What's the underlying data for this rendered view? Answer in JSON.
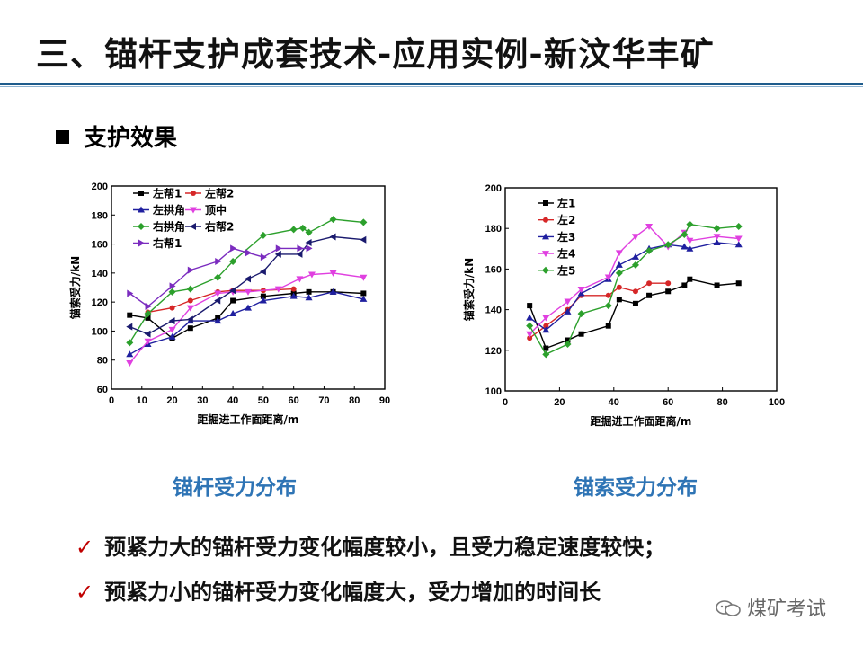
{
  "page": {
    "title": "三、锚杆支护成套技术-应用实例-新汶华丰矿",
    "section": "支护效果",
    "bullets": [
      "预紧力大的锚杆受力变化幅度较小，且受力稳定速度较快；",
      "预紧力小的锚杆受力变化幅度大，受力增加的时间长"
    ],
    "check_symbol": "✓",
    "watermark": "煤矿考试",
    "colors": {
      "title_rule": "#1f5c8c",
      "caption": "#2e74b5",
      "check": "#c00000"
    }
  },
  "chart_data": [
    {
      "type": "line",
      "caption": "锚杆受力分布",
      "xlabel": "距掘进工作面距离/m",
      "ylabel": "锚索受力/kN",
      "xlim": [
        0,
        90
      ],
      "ylim": [
        60,
        200
      ],
      "xticks": [
        0,
        10,
        20,
        30,
        40,
        50,
        60,
        70,
        80,
        90
      ],
      "yticks": [
        60,
        80,
        100,
        120,
        140,
        160,
        180,
        200
      ],
      "legend_columns": 2,
      "series": [
        {
          "name": "左帮1",
          "color": "#000000",
          "marker": "square",
          "x": [
            6,
            12,
            20,
            26,
            35,
            40,
            50,
            60,
            65,
            73,
            83
          ],
          "y": [
            111,
            109,
            95,
            102,
            109,
            121,
            124,
            126,
            127,
            127,
            126
          ]
        },
        {
          "name": "左帮2",
          "color": "#d62728",
          "marker": "circle",
          "x": [
            12,
            20,
            26,
            35,
            40,
            50,
            60
          ],
          "y": [
            113,
            116,
            121,
            127,
            128,
            128,
            129
          ]
        },
        {
          "name": "左拱角",
          "color": "#1f1f9f",
          "marker": "triangle-up",
          "x": [
            6,
            12,
            20,
            26,
            35,
            40,
            45,
            50,
            60,
            65,
            73,
            83
          ],
          "y": [
            84,
            91,
            96,
            107,
            107,
            112,
            116,
            121,
            124,
            123,
            127,
            122
          ]
        },
        {
          "name": "顶中",
          "color": "#e040e0",
          "marker": "triangle-down",
          "x": [
            6,
            12,
            20,
            26,
            35,
            40,
            45,
            55,
            62,
            66,
            73,
            83
          ],
          "y": [
            78,
            93,
            101,
            116,
            126,
            127,
            127,
            129,
            136,
            139,
            140,
            137
          ]
        },
        {
          "name": "右拱角",
          "color": "#2ca02c",
          "marker": "diamond",
          "x": [
            6,
            12,
            20,
            26,
            35,
            40,
            50,
            60,
            63,
            65,
            73,
            83
          ],
          "y": [
            92,
            112,
            127,
            129,
            137,
            148,
            166,
            170,
            171,
            168,
            177,
            175
          ]
        },
        {
          "name": "右帮2",
          "color": "#1a1a6e",
          "marker": "triangle-left",
          "x": [
            6,
            12,
            20,
            26,
            35,
            40,
            45,
            50,
            55,
            62,
            65,
            73,
            83
          ],
          "y": [
            103,
            98,
            107,
            108,
            121,
            128,
            136,
            141,
            153,
            153,
            161,
            165,
            163
          ]
        },
        {
          "name": "右帮1",
          "color": "#7b2cbf",
          "marker": "triangle-right",
          "x": [
            6,
            12,
            20,
            26,
            35,
            40,
            45,
            50,
            55,
            62,
            65
          ],
          "y": [
            126,
            117,
            131,
            142,
            148,
            157,
            154,
            151,
            157,
            157,
            157
          ]
        }
      ]
    },
    {
      "type": "line",
      "caption": "锚索受力分布",
      "xlabel": "距掘进工作面距离/m",
      "ylabel": "锚索受力/kN",
      "xlim": [
        0,
        100
      ],
      "ylim": [
        100,
        200
      ],
      "xticks": [
        0,
        20,
        40,
        60,
        80,
        100
      ],
      "yticks": [
        100,
        120,
        140,
        160,
        180,
        200
      ],
      "legend_columns": 1,
      "series": [
        {
          "name": "左1",
          "color": "#000000",
          "marker": "square",
          "x": [
            9,
            15,
            23,
            28,
            38,
            42,
            48,
            53,
            60,
            66,
            68,
            78,
            86
          ],
          "y": [
            142,
            121,
            125,
            128,
            132,
            145,
            143,
            147,
            149,
            152,
            155,
            152,
            153
          ]
        },
        {
          "name": "左2",
          "color": "#d62728",
          "marker": "circle",
          "x": [
            9,
            15,
            23,
            28,
            38,
            42,
            48,
            53,
            60
          ],
          "y": [
            126,
            132,
            140,
            147,
            147,
            151,
            149,
            153,
            153
          ]
        },
        {
          "name": "左3",
          "color": "#1f1f9f",
          "marker": "triangle-up",
          "x": [
            9,
            15,
            23,
            28,
            38,
            42,
            48,
            53,
            60,
            66,
            68,
            78,
            86
          ],
          "y": [
            136,
            130,
            139,
            148,
            155,
            162,
            166,
            170,
            172,
            171,
            170,
            173,
            172
          ]
        },
        {
          "name": "左4",
          "color": "#e040e0",
          "marker": "triangle-down",
          "x": [
            9,
            15,
            23,
            28,
            38,
            42,
            48,
            53,
            60,
            66,
            68,
            78,
            86
          ],
          "y": [
            128,
            136,
            144,
            150,
            156,
            168,
            176,
            181,
            171,
            178,
            174,
            176,
            175
          ]
        },
        {
          "name": "左5",
          "color": "#2ca02c",
          "marker": "diamond",
          "x": [
            9,
            15,
            23,
            28,
            38,
            42,
            48,
            53,
            60,
            66,
            68,
            78,
            86
          ],
          "y": [
            132,
            118,
            123,
            138,
            142,
            158,
            162,
            169,
            172,
            177,
            182,
            180,
            181
          ]
        }
      ]
    }
  ]
}
